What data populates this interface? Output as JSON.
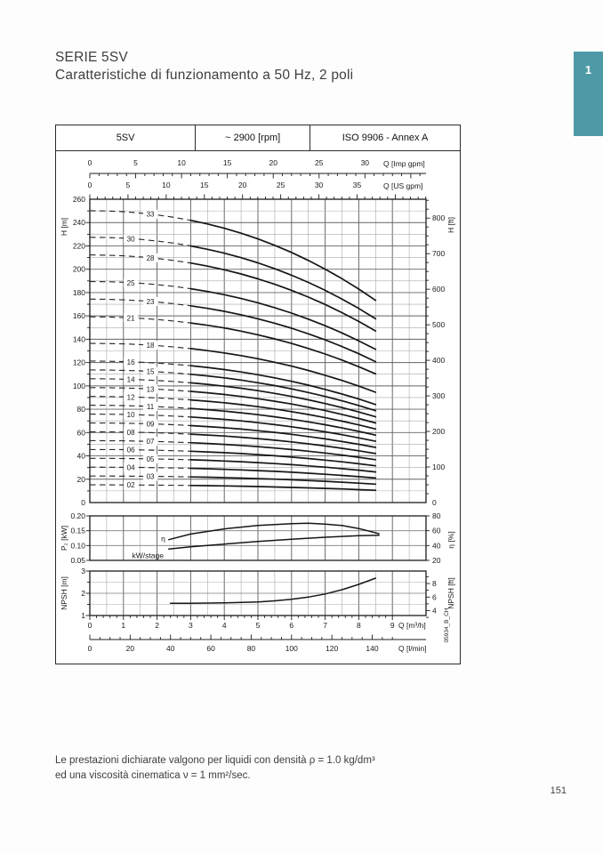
{
  "page": {
    "title": "SERIE 5SV",
    "subtitle": "Caratteristiche di funzionamento a 50 Hz, 2 poli",
    "tab_number": "1",
    "page_number": "151",
    "footnote_line1": "Le prestazioni dichiarate valgono per liquidi con densità ρ = 1.0 kg/dm³",
    "footnote_line2": "ed una viscosità cinematica ν = 1 mm²/sec.",
    "accent_color": "#4d9aa6"
  },
  "chart_header": {
    "model": "5SV",
    "speed": "~ 2900 [rpm]",
    "standard": "ISO 9906 - Annex A"
  },
  "chart_data": {
    "type": "line",
    "title": "5SV pump performance curves, 50 Hz, 2 poles, ~2900 rpm",
    "code_vertical": "05934_B_CH",
    "flow_range_m3h": [
      0,
      8.5
    ],
    "dashed_below_m3h": 3.0,
    "axes": {
      "q_imp_gpm": {
        "title": "Q [Imp gpm]",
        "ticks": [
          0,
          5,
          10,
          15,
          20,
          25,
          30
        ],
        "m3h_per_unit": 0.27277
      },
      "q_us_gpm": {
        "title": "Q [US gpm]",
        "ticks": [
          0,
          5,
          10,
          15,
          20,
          25,
          30,
          35
        ],
        "m3h_per_unit": 0.22712
      },
      "q_m3h": {
        "title": "Q [m³/h]",
        "ticks": [
          0,
          1,
          2,
          3,
          4,
          5,
          6,
          7,
          8,
          9
        ]
      },
      "q_lmin": {
        "title": "Q [l/min]",
        "ticks": [
          0,
          20,
          40,
          60,
          80,
          100,
          120,
          140
        ],
        "m3h_per_unit": 0.06
      },
      "h_m": {
        "title": "H [m]",
        "min": 0,
        "max": 260,
        "tick_step": 20
      },
      "h_ft": {
        "title": "H [ft]",
        "ticks": [
          0,
          100,
          200,
          300,
          400,
          500,
          600,
          700,
          800
        ]
      },
      "p2_kw": {
        "title": "P₂ [kW]",
        "ticks": [
          "0.05",
          "0.10",
          "0.15",
          "0.20"
        ]
      },
      "eta_pct": {
        "title": "η [%]",
        "ticks": [
          20,
          40,
          60,
          80
        ]
      },
      "npsh_m": {
        "title": "NPSH [m]",
        "ticks": [
          1,
          2,
          3
        ]
      },
      "npsh_ft": {
        "title": "NPSH [ft]",
        "ticks": [
          4,
          6,
          8
        ]
      }
    },
    "stage_curves": {
      "note": "head per stage [Q m3/h, H m]; total H = stages × per-stage head",
      "per_stage_head_m": [
        [
          0,
          7.58
        ],
        [
          0.5,
          7.574
        ],
        [
          1,
          7.555
        ],
        [
          1.5,
          7.521
        ],
        [
          2,
          7.473
        ],
        [
          2.5,
          7.41
        ],
        [
          3,
          7.332
        ],
        [
          3.5,
          7.237
        ],
        [
          4,
          7.126
        ],
        [
          4.5,
          6.997
        ],
        [
          5,
          6.849
        ],
        [
          5.5,
          6.682
        ],
        [
          6,
          6.496
        ],
        [
          6.5,
          6.29
        ],
        [
          7,
          6.063
        ],
        [
          7.5,
          5.815
        ],
        [
          8,
          5.545
        ],
        [
          8.5,
          5.252
        ]
      ],
      "stages": [
        {
          "n": 2,
          "label": "02"
        },
        {
          "n": 3,
          "label": "03"
        },
        {
          "n": 4,
          "label": "04"
        },
        {
          "n": 5,
          "label": "05"
        },
        {
          "n": 6,
          "label": "06"
        },
        {
          "n": 7,
          "label": "07"
        },
        {
          "n": 8,
          "label": "08"
        },
        {
          "n": 9,
          "label": "09"
        },
        {
          "n": 10,
          "label": "10"
        },
        {
          "n": 11,
          "label": "11"
        },
        {
          "n": 12,
          "label": "12"
        },
        {
          "n": 13,
          "label": "13"
        },
        {
          "n": 14,
          "label": "14"
        },
        {
          "n": 15,
          "label": "15"
        },
        {
          "n": 16,
          "label": "16"
        },
        {
          "n": 18,
          "label": "18"
        },
        {
          "n": 21,
          "label": "21"
        },
        {
          "n": 23,
          "label": "23"
        },
        {
          "n": 25,
          "label": "25"
        },
        {
          "n": 28,
          "label": "28"
        },
        {
          "n": 30,
          "label": "30"
        },
        {
          "n": 33,
          "label": "33"
        }
      ]
    },
    "efficiency_curve": {
      "label": "η",
      "points": [
        [
          2.35,
          48
        ],
        [
          3,
          55.5
        ],
        [
          4,
          62.5
        ],
        [
          5,
          67
        ],
        [
          6,
          69.5
        ],
        [
          6.5,
          70
        ],
        [
          7,
          69
        ],
        [
          7.5,
          67
        ],
        [
          8,
          63
        ],
        [
          8.6,
          56
        ]
      ]
    },
    "power_curve": {
      "label": "kW/stage",
      "points": [
        [
          2.35,
          0.088
        ],
        [
          3,
          0.0955
        ],
        [
          4,
          0.105
        ],
        [
          5,
          0.114
        ],
        [
          6,
          0.1215
        ],
        [
          7,
          0.128
        ],
        [
          8,
          0.133
        ],
        [
          8.6,
          0.1345
        ]
      ]
    },
    "npsh_curve": {
      "points": [
        [
          2.4,
          1.55
        ],
        [
          3,
          1.55
        ],
        [
          4,
          1.57
        ],
        [
          5,
          1.61
        ],
        [
          5.5,
          1.66
        ],
        [
          6,
          1.73
        ],
        [
          6.5,
          1.83
        ],
        [
          7,
          1.97
        ],
        [
          7.5,
          2.16
        ],
        [
          8,
          2.4
        ],
        [
          8.5,
          2.68
        ]
      ]
    }
  }
}
